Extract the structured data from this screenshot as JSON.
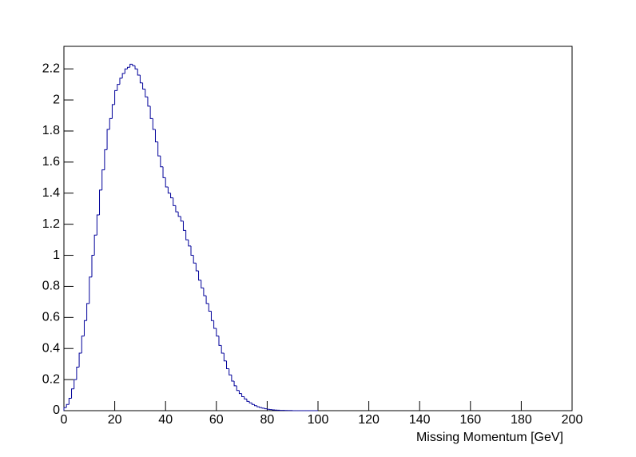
{
  "chart_data": {
    "type": "histogram",
    "xlabel": "Missing Momentum [GeV]",
    "bins": [
      0,
      1,
      2,
      3,
      4,
      5,
      6,
      7,
      8,
      9,
      10,
      11,
      12,
      13,
      14,
      15,
      16,
      17,
      18,
      19,
      20,
      21,
      22,
      23,
      24,
      25,
      26,
      27,
      28,
      29,
      30,
      31,
      32,
      33,
      34,
      35,
      36,
      37,
      38,
      39,
      40,
      41,
      42,
      43,
      44,
      45,
      46,
      47,
      48,
      49,
      50,
      51,
      52,
      53,
      54,
      55,
      56,
      57,
      58,
      59,
      60,
      61,
      62,
      63,
      64,
      65,
      66,
      67,
      68,
      69,
      70,
      71,
      72,
      73,
      74,
      75,
      76,
      77,
      78,
      79,
      80,
      81,
      82,
      83,
      84,
      85,
      86,
      87,
      88,
      89,
      90,
      91,
      92,
      93,
      94,
      95,
      96,
      97,
      98,
      99,
      100
    ],
    "values": [
      0.02,
      0.04,
      0.08,
      0.14,
      0.2,
      0.28,
      0.37,
      0.48,
      0.58,
      0.69,
      0.86,
      1.0,
      1.13,
      1.26,
      1.42,
      1.55,
      1.68,
      1.81,
      1.88,
      1.97,
      2.06,
      2.1,
      2.14,
      2.17,
      2.2,
      2.21,
      2.23,
      2.22,
      2.2,
      2.16,
      2.11,
      2.07,
      2.02,
      1.96,
      1.88,
      1.81,
      1.73,
      1.64,
      1.57,
      1.5,
      1.44,
      1.4,
      1.37,
      1.32,
      1.28,
      1.25,
      1.22,
      1.16,
      1.1,
      1.06,
      1.0,
      0.95,
      0.9,
      0.84,
      0.79,
      0.74,
      0.69,
      0.64,
      0.58,
      0.53,
      0.48,
      0.42,
      0.37,
      0.32,
      0.27,
      0.23,
      0.19,
      0.16,
      0.13,
      0.11,
      0.09,
      0.075,
      0.06,
      0.05,
      0.04,
      0.032,
      0.025,
      0.02,
      0.016,
      0.012,
      0.009,
      0.007,
      0.005,
      0.004,
      0.003,
      0.002,
      0.002,
      0.001,
      0.001,
      0.001,
      0,
      0,
      0,
      0,
      0,
      0,
      0,
      0,
      0,
      0
    ],
    "color": "#000099",
    "xlim": [
      0,
      200
    ],
    "xticks": [
      0,
      20,
      40,
      60,
      80,
      100,
      120,
      140,
      160,
      180,
      200
    ],
    "ylim": [
      0,
      2.345
    ],
    "yticks": [
      0,
      0.2,
      0.4,
      0.6,
      0.8,
      1,
      1.2,
      1.4,
      1.6,
      1.8,
      2,
      2.2
    ]
  }
}
